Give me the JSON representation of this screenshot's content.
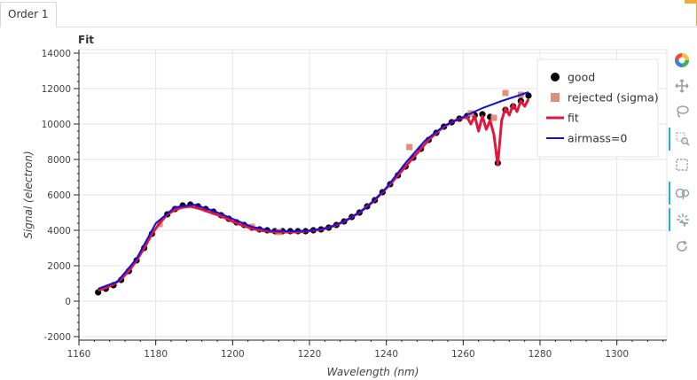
{
  "tabs": [
    {
      "label": "Order 1"
    }
  ],
  "chart_data": {
    "type": "scatter",
    "title": "Fit",
    "xlabel": "Wavelength (nm)",
    "ylabel": "Signal (electron)",
    "xlim": [
      1160,
      1313
    ],
    "ylim": [
      -2200,
      14200
    ],
    "x_ticks": [
      1160,
      1180,
      1200,
      1220,
      1240,
      1260,
      1280,
      1300
    ],
    "y_ticks": [
      -2000,
      0,
      2000,
      4000,
      6000,
      8000,
      10000,
      12000,
      14000
    ],
    "grid": true,
    "legend_position": "top-right",
    "series": [
      {
        "name": "good",
        "marker": "circle",
        "color": "#000000",
        "x": [
          1165,
          1167,
          1169,
          1171,
          1173,
          1175,
          1177,
          1179,
          1181,
          1183,
          1185,
          1187,
          1189,
          1191,
          1193,
          1195,
          1197,
          1199,
          1201,
          1203,
          1205,
          1207,
          1209,
          1211,
          1213,
          1215,
          1217,
          1219,
          1221,
          1223,
          1225,
          1227,
          1229,
          1231,
          1233,
          1235,
          1237,
          1239,
          1241,
          1243,
          1245,
          1247,
          1249,
          1251,
          1253,
          1255,
          1257,
          1259,
          1261,
          1263,
          1265,
          1267,
          1269,
          1271,
          1273,
          1275,
          1277
        ],
        "y": [
          500,
          700,
          900,
          1200,
          1700,
          2300,
          3000,
          3800,
          4400,
          4900,
          5200,
          5400,
          5450,
          5350,
          5200,
          5050,
          4850,
          4650,
          4450,
          4300,
          4150,
          4050,
          4000,
          3950,
          3950,
          3950,
          3950,
          3950,
          4000,
          4050,
          4150,
          4300,
          4500,
          4750,
          5000,
          5350,
          5700,
          6150,
          6600,
          7100,
          7600,
          8100,
          8600,
          9100,
          9500,
          9850,
          10100,
          10300,
          10450,
          10500,
          10550,
          10400,
          7800,
          10800,
          11000,
          11300,
          11600
        ]
      },
      {
        "name": "rejected (sigma)",
        "marker": "square",
        "color": "#e0907a",
        "x": [
          1181,
          1205,
          1212,
          1246,
          1262,
          1268,
          1271,
          1275
        ],
        "y": [
          4350,
          4200,
          3900,
          8700,
          10600,
          10350,
          11750,
          11650
        ]
      },
      {
        "name": "fit",
        "marker": "line",
        "color": "#e0163d",
        "x": [
          1165,
          1167,
          1169,
          1171,
          1173,
          1175,
          1177,
          1179,
          1181,
          1183,
          1185,
          1187,
          1189,
          1191,
          1193,
          1195,
          1197,
          1199,
          1201,
          1203,
          1205,
          1207,
          1209,
          1211,
          1213,
          1215,
          1217,
          1219,
          1221,
          1223,
          1225,
          1227,
          1229,
          1231,
          1233,
          1235,
          1237,
          1239,
          1241,
          1243,
          1245,
          1247,
          1249,
          1251,
          1253,
          1255,
          1257,
          1259,
          1261,
          1262,
          1263,
          1264,
          1265,
          1266,
          1267,
          1268,
          1269,
          1270,
          1271,
          1272,
          1273,
          1274,
          1275,
          1276,
          1277
        ],
        "y": [
          600,
          750,
          950,
          1250,
          1700,
          2300,
          3000,
          3800,
          4400,
          4900,
          5150,
          5300,
          5350,
          5250,
          5100,
          4950,
          4800,
          4600,
          4400,
          4250,
          4100,
          4000,
          3950,
          3900,
          3900,
          3900,
          3900,
          3950,
          4000,
          4050,
          4150,
          4300,
          4500,
          4750,
          5000,
          5350,
          5700,
          6150,
          6600,
          7100,
          7600,
          8100,
          8600,
          9100,
          9500,
          9850,
          10100,
          10300,
          10400,
          10000,
          10450,
          9600,
          10450,
          9700,
          10200,
          9400,
          7700,
          10200,
          10900,
          10500,
          11100,
          10700,
          11300,
          11000,
          11400
        ]
      },
      {
        "name": "airmass=0",
        "marker": "line",
        "color": "#1010e0",
        "x": [
          1165,
          1170,
          1175,
          1180,
          1185,
          1190,
          1195,
          1200,
          1205,
          1210,
          1215,
          1220,
          1225,
          1230,
          1235,
          1240,
          1245,
          1250,
          1255,
          1260,
          1265,
          1270,
          1275,
          1277
        ],
        "y": [
          700,
          1100,
          2400,
          4400,
          5300,
          5450,
          5100,
          4650,
          4200,
          3980,
          3950,
          3980,
          4150,
          4600,
          5300,
          6400,
          7800,
          9050,
          9900,
          10400,
          10900,
          11300,
          11650,
          11800
        ]
      }
    ]
  },
  "toolbar": {
    "tools": [
      {
        "icon": "bokeh-logo-icon"
      },
      {
        "icon": "pan-icon"
      },
      {
        "icon": "lasso-select-icon"
      },
      {
        "icon": "zoom-in-box-icon"
      },
      {
        "icon": "box-select-icon"
      },
      {
        "icon": "wheel-zoom-icon"
      },
      {
        "icon": "tap-icon"
      },
      {
        "icon": "reset-icon"
      }
    ]
  }
}
